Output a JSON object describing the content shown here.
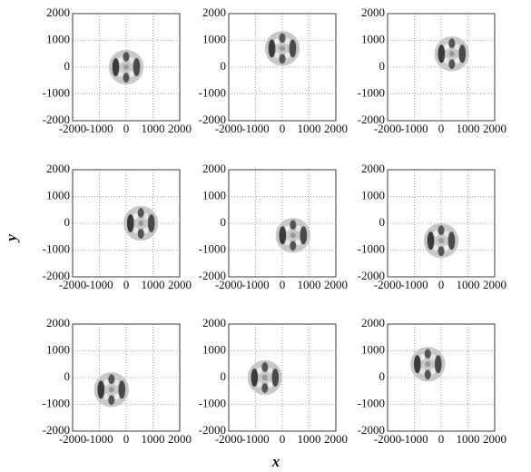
{
  "xlabel": "x",
  "ylabel": "y",
  "chart_data": [
    {
      "type": "scatter",
      "x": [
        0
      ],
      "y": [
        0
      ],
      "r": [
        650
      ],
      "xlim": [
        -2000,
        2000
      ],
      "ylim": [
        -2000,
        2000
      ],
      "xticks": [
        -2000,
        -1000,
        0,
        1000,
        2000
      ],
      "yticks": [
        -2000,
        -1000,
        0,
        1000,
        2000
      ],
      "grid": true
    },
    {
      "type": "scatter",
      "x": [
        0
      ],
      "y": [
        700
      ],
      "r": [
        650
      ],
      "xlim": [
        -2000,
        2000
      ],
      "ylim": [
        -2000,
        2000
      ],
      "xticks": [
        -2000,
        -1000,
        0,
        1000,
        2000
      ],
      "yticks": [
        -2000,
        -1000,
        0,
        1000,
        2000
      ],
      "grid": true
    },
    {
      "type": "scatter",
      "x": [
        400
      ],
      "y": [
        500
      ],
      "r": [
        650
      ],
      "xlim": [
        -2000,
        2000
      ],
      "ylim": [
        -2000,
        2000
      ],
      "xticks": [
        -2000,
        -1000,
        0,
        1000,
        2000
      ],
      "yticks": [
        -2000,
        -1000,
        0,
        1000,
        2000
      ],
      "grid": true
    },
    {
      "type": "scatter",
      "x": [
        550
      ],
      "y": [
        0
      ],
      "r": [
        650
      ],
      "xlim": [
        -2000,
        2000
      ],
      "ylim": [
        -2000,
        2000
      ],
      "xticks": [
        -2000,
        -1000,
        0,
        1000,
        2000
      ],
      "yticks": [
        -2000,
        -1000,
        0,
        1000,
        2000
      ],
      "grid": true
    },
    {
      "type": "scatter",
      "x": [
        400
      ],
      "y": [
        -450
      ],
      "r": [
        650
      ],
      "xlim": [
        -2000,
        2000
      ],
      "ylim": [
        -2000,
        2000
      ],
      "xticks": [
        -2000,
        -1000,
        0,
        1000,
        2000
      ],
      "yticks": [
        -2000,
        -1000,
        0,
        1000,
        2000
      ],
      "grid": true
    },
    {
      "type": "scatter",
      "x": [
        0
      ],
      "y": [
        -650
      ],
      "r": [
        650
      ],
      "xlim": [
        -2000,
        2000
      ],
      "ylim": [
        -2000,
        2000
      ],
      "xticks": [
        -2000,
        -1000,
        0,
        1000,
        2000
      ],
      "yticks": [
        -2000,
        -1000,
        0,
        1000,
        2000
      ],
      "grid": true
    },
    {
      "type": "scatter",
      "x": [
        -550
      ],
      "y": [
        -450
      ],
      "r": [
        650
      ],
      "xlim": [
        -2000,
        2000
      ],
      "ylim": [
        -2000,
        2000
      ],
      "xticks": [
        -2000,
        -1000,
        0,
        1000,
        2000
      ],
      "yticks": [
        -2000,
        -1000,
        0,
        1000,
        2000
      ],
      "grid": true
    },
    {
      "type": "scatter",
      "x": [
        -650
      ],
      "y": [
        0
      ],
      "r": [
        650
      ],
      "xlim": [
        -2000,
        2000
      ],
      "ylim": [
        -2000,
        2000
      ],
      "xticks": [
        -2000,
        -1000,
        0,
        1000,
        2000
      ],
      "yticks": [
        -2000,
        -1000,
        0,
        1000,
        2000
      ],
      "grid": true
    },
    {
      "type": "scatter",
      "x": [
        -500
      ],
      "y": [
        500
      ],
      "r": [
        650
      ],
      "xlim": [
        -2000,
        2000
      ],
      "ylim": [
        -2000,
        2000
      ],
      "xticks": [
        -2000,
        -1000,
        0,
        1000,
        2000
      ],
      "yticks": [
        -2000,
        -1000,
        0,
        1000,
        2000
      ],
      "grid": true
    }
  ]
}
